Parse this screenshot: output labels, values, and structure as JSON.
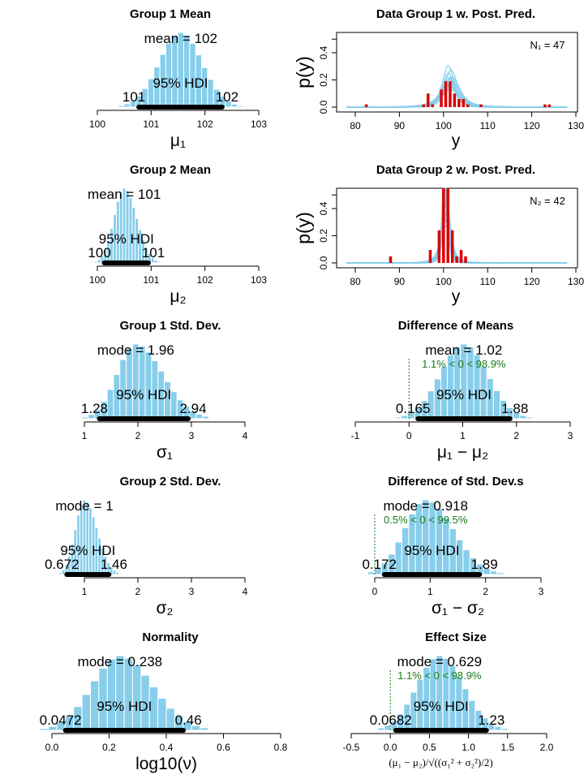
{
  "chart_data": [
    {
      "type": "histogram",
      "title": "Group 1 Mean",
      "xlabel": "μ₁",
      "central_label": "mean = 102",
      "hdi_label": "95% HDI",
      "hdi_low": "101",
      "hdi_high": "102",
      "xticks": [
        "100",
        "101",
        "102",
        "103"
      ],
      "xlim": [
        100,
        103
      ],
      "bar_color": "#87CEEB"
    },
    {
      "type": "line",
      "title": "Data Group 1 w. Post. Pred.",
      "xlabel": "y",
      "ylabel": "p(y)",
      "xticks": [
        "80",
        "90",
        "100",
        "110",
        "120",
        "130"
      ],
      "yticks": [
        "0.0",
        "0.2",
        "0.4"
      ],
      "xlim": [
        80,
        130
      ],
      "ylim": [
        0,
        0.55
      ],
      "n_label": "N₁ = 47",
      "data_histogram": {
        "x": [
          82.5,
          95.5,
          96.5,
          97.5,
          99.5,
          100.5,
          101.5,
          102.5,
          103.5,
          104.5,
          105.5,
          108.5,
          123,
          124
        ],
        "density": [
          0.02,
          0.02,
          0.1,
          0.02,
          0.13,
          0.19,
          0.19,
          0.1,
          0.06,
          0.06,
          0.02,
          0.02,
          0.02,
          0.02
        ]
      },
      "data_color": "#DD0000",
      "curve_color": "#87CEEB"
    },
    {
      "type": "histogram",
      "title": "Group 2 Mean",
      "xlabel": "μ₂",
      "central_label": "mean = 101",
      "hdi_label": "95% HDI",
      "hdi_low": "100",
      "hdi_high": "101",
      "xticks": [
        "100",
        "101",
        "102",
        "103"
      ],
      "xlim": [
        100,
        103
      ],
      "bar_color": "#87CEEB"
    },
    {
      "type": "line",
      "title": "Data Group 2 w. Post. Pred.",
      "xlabel": "y",
      "ylabel": "p(y)",
      "xticks": [
        "80",
        "90",
        "100",
        "110",
        "120",
        "130"
      ],
      "yticks": [
        "0.0",
        "0.2",
        "0.4"
      ],
      "xlim": [
        80,
        130
      ],
      "ylim": [
        0,
        0.55
      ],
      "n_label": "N₂ = 42",
      "data_histogram": {
        "x": [
          88,
          97,
          99,
          100,
          101,
          102,
          103,
          104,
          105
        ],
        "density": [
          0.048,
          0.095,
          0.24,
          0.6,
          0.6,
          0.24,
          0.048,
          0.095,
          0.048
        ]
      },
      "data_color": "#DD0000",
      "curve_color": "#87CEEB"
    },
    {
      "type": "histogram",
      "title": "Group 1 Std. Dev.",
      "xlabel": "σ₁",
      "central_label": "mode = 1.96",
      "hdi_label": "95% HDI",
      "hdi_low": "1.28",
      "hdi_high": "2.94",
      "xticks": [
        "1",
        "2",
        "3",
        "4"
      ],
      "xlim": [
        1,
        4
      ],
      "bar_color": "#87CEEB"
    },
    {
      "type": "histogram",
      "title": "Difference of Means",
      "xlabel": "μ₁ − μ₂",
      "central_label": "mean = 1.02",
      "comparison_label": "1.1% < 0 < 98.9%",
      "comparison_value": 0,
      "hdi_label": "95% HDI",
      "hdi_low": "0.165",
      "hdi_high": "1.88",
      "xticks": [
        "-1",
        "0",
        "1",
        "2",
        "3"
      ],
      "xlim": [
        -1,
        3
      ],
      "bar_color": "#87CEEB"
    },
    {
      "type": "histogram",
      "title": "Group 2 Std. Dev.",
      "xlabel": "σ₂",
      "central_label": "mode = 1",
      "hdi_label": "95% HDI",
      "hdi_low": "0.672",
      "hdi_high": "1.46",
      "xticks": [
        "1",
        "2",
        "3",
        "4"
      ],
      "xlim": [
        1,
        4
      ],
      "bar_color": "#87CEEB"
    },
    {
      "type": "histogram",
      "title": "Difference of Std. Dev.s",
      "xlabel": "σ₁ − σ₂",
      "central_label": "mode = 0.918",
      "comparison_label": "0.5% < 0 < 99.5%",
      "comparison_value": 0,
      "hdi_label": "95% HDI",
      "hdi_low": "0.172",
      "hdi_high": "1.89",
      "xticks": [
        "0",
        "1",
        "2",
        "3"
      ],
      "xlim": [
        0,
        3
      ],
      "bar_color": "#87CEEB"
    },
    {
      "type": "histogram",
      "title": "Normality",
      "xlabel": "log10(ν)",
      "central_label": "mode = 0.238",
      "hdi_label": "95% HDI",
      "hdi_low": "0.0472",
      "hdi_high": "0.46",
      "xticks": [
        "0.0",
        "0.2",
        "0.4",
        "0.6",
        "0.8"
      ],
      "xlim": [
        0,
        0.8
      ],
      "bar_color": "#87CEEB"
    },
    {
      "type": "histogram",
      "title": "Effect Size",
      "xlabel": "(μ₁ − μ₂)/√((σ₁² + σ₂²)/2)",
      "central_label": "mode = 0.629",
      "comparison_label": "1.1% < 0 < 98.9%",
      "comparison_value": 0,
      "hdi_label": "95% HDI",
      "hdi_low": "0.0682",
      "hdi_high": "1.23",
      "xticks": [
        "-0.5",
        "0.0",
        "0.5",
        "1.0",
        "1.5",
        "2.0"
      ],
      "xlim": [
        -0.5,
        2.0
      ],
      "bar_color": "#87CEEB"
    }
  ]
}
